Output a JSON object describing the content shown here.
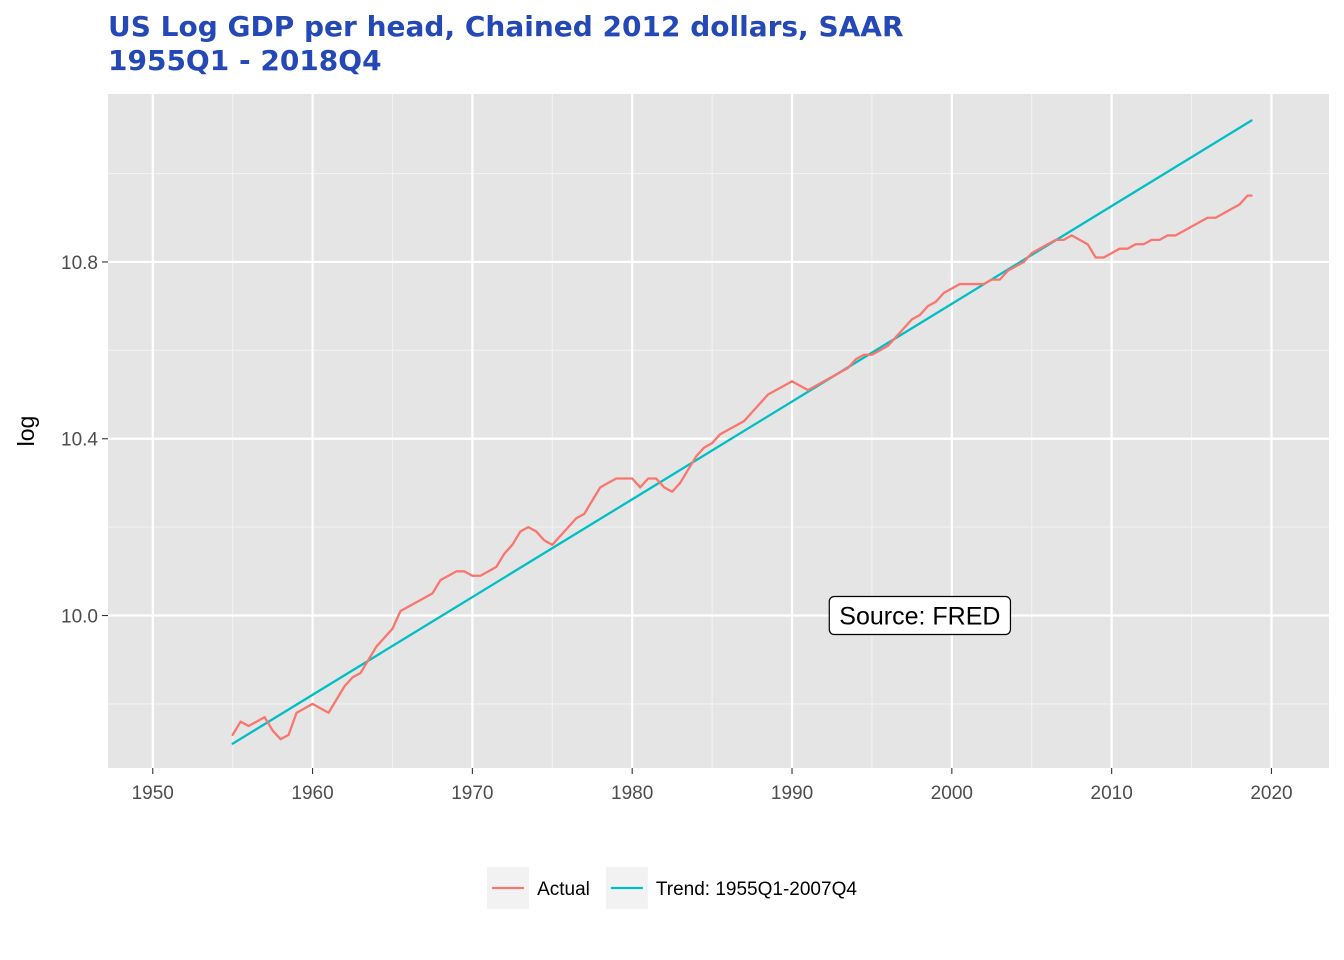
{
  "chart_data": {
    "type": "line",
    "title": "US Log GDP per head, Chained 2012 dollars, SAAR",
    "subtitle": "1955Q1 - 2018Q4",
    "xlabel": "",
    "ylabel": "log",
    "xlim": [
      1947.2,
      2023.6
    ],
    "ylim": [
      9.655,
      11.18
    ],
    "x_ticks": [
      1950,
      1960,
      1970,
      1980,
      1990,
      2000,
      2010,
      2020
    ],
    "y_ticks": [
      10.0,
      10.4,
      10.8
    ],
    "y_tick_labels": [
      "10.0",
      "10.4",
      "10.8"
    ],
    "grid": true,
    "legend_position": "bottom",
    "annotation": {
      "text": "Source: FRED",
      "x": 1998,
      "y": 10.0
    },
    "series": [
      {
        "name": "Actual",
        "color": "#F8766D",
        "points": [
          [
            1955.0,
            9.73
          ],
          [
            1955.5,
            9.76
          ],
          [
            1956.0,
            9.75
          ],
          [
            1956.5,
            9.76
          ],
          [
            1957.0,
            9.77
          ],
          [
            1957.5,
            9.74
          ],
          [
            1958.0,
            9.72
          ],
          [
            1958.5,
            9.73
          ],
          [
            1959.0,
            9.78
          ],
          [
            1959.5,
            9.79
          ],
          [
            1960.0,
            9.8
          ],
          [
            1960.5,
            9.79
          ],
          [
            1961.0,
            9.78
          ],
          [
            1961.5,
            9.81
          ],
          [
            1962.0,
            9.84
          ],
          [
            1962.5,
            9.86
          ],
          [
            1963.0,
            9.87
          ],
          [
            1963.5,
            9.9
          ],
          [
            1964.0,
            9.93
          ],
          [
            1964.5,
            9.95
          ],
          [
            1965.0,
            9.97
          ],
          [
            1965.5,
            10.01
          ],
          [
            1966.0,
            10.02
          ],
          [
            1966.5,
            10.03
          ],
          [
            1967.0,
            10.04
          ],
          [
            1967.5,
            10.05
          ],
          [
            1968.0,
            10.08
          ],
          [
            1968.5,
            10.09
          ],
          [
            1969.0,
            10.1
          ],
          [
            1969.5,
            10.1
          ],
          [
            1970.0,
            10.09
          ],
          [
            1970.5,
            10.09
          ],
          [
            1971.0,
            10.1
          ],
          [
            1971.5,
            10.11
          ],
          [
            1972.0,
            10.14
          ],
          [
            1972.5,
            10.16
          ],
          [
            1973.0,
            10.19
          ],
          [
            1973.5,
            10.2
          ],
          [
            1974.0,
            10.19
          ],
          [
            1974.5,
            10.17
          ],
          [
            1975.0,
            10.16
          ],
          [
            1975.5,
            10.18
          ],
          [
            1976.0,
            10.2
          ],
          [
            1976.5,
            10.22
          ],
          [
            1977.0,
            10.23
          ],
          [
            1977.5,
            10.26
          ],
          [
            1978.0,
            10.29
          ],
          [
            1978.5,
            10.3
          ],
          [
            1979.0,
            10.31
          ],
          [
            1979.5,
            10.31
          ],
          [
            1980.0,
            10.31
          ],
          [
            1980.5,
            10.29
          ],
          [
            1981.0,
            10.31
          ],
          [
            1981.5,
            10.31
          ],
          [
            1982.0,
            10.29
          ],
          [
            1982.5,
            10.28
          ],
          [
            1983.0,
            10.3
          ],
          [
            1983.5,
            10.33
          ],
          [
            1984.0,
            10.36
          ],
          [
            1984.5,
            10.38
          ],
          [
            1985.0,
            10.39
          ],
          [
            1985.5,
            10.41
          ],
          [
            1986.0,
            10.42
          ],
          [
            1986.5,
            10.43
          ],
          [
            1987.0,
            10.44
          ],
          [
            1987.5,
            10.46
          ],
          [
            1988.0,
            10.48
          ],
          [
            1988.5,
            10.5
          ],
          [
            1989.0,
            10.51
          ],
          [
            1989.5,
            10.52
          ],
          [
            1990.0,
            10.53
          ],
          [
            1990.5,
            10.52
          ],
          [
            1991.0,
            10.51
          ],
          [
            1991.5,
            10.52
          ],
          [
            1992.0,
            10.53
          ],
          [
            1992.5,
            10.54
          ],
          [
            1993.0,
            10.55
          ],
          [
            1993.5,
            10.56
          ],
          [
            1994.0,
            10.58
          ],
          [
            1994.5,
            10.59
          ],
          [
            1995.0,
            10.59
          ],
          [
            1995.5,
            10.6
          ],
          [
            1996.0,
            10.61
          ],
          [
            1996.5,
            10.63
          ],
          [
            1997.0,
            10.65
          ],
          [
            1997.5,
            10.67
          ],
          [
            1998.0,
            10.68
          ],
          [
            1998.5,
            10.7
          ],
          [
            1999.0,
            10.71
          ],
          [
            1999.5,
            10.73
          ],
          [
            2000.0,
            10.74
          ],
          [
            2000.5,
            10.75
          ],
          [
            2001.0,
            10.75
          ],
          [
            2001.5,
            10.75
          ],
          [
            2002.0,
            10.75
          ],
          [
            2002.5,
            10.76
          ],
          [
            2003.0,
            10.76
          ],
          [
            2003.5,
            10.78
          ],
          [
            2004.0,
            10.79
          ],
          [
            2004.5,
            10.8
          ],
          [
            2005.0,
            10.82
          ],
          [
            2005.5,
            10.83
          ],
          [
            2006.0,
            10.84
          ],
          [
            2006.5,
            10.85
          ],
          [
            2007.0,
            10.85
          ],
          [
            2007.5,
            10.86
          ],
          [
            2008.0,
            10.85
          ],
          [
            2008.5,
            10.84
          ],
          [
            2009.0,
            10.81
          ],
          [
            2009.5,
            10.81
          ],
          [
            2010.0,
            10.82
          ],
          [
            2010.5,
            10.83
          ],
          [
            2011.0,
            10.83
          ],
          [
            2011.5,
            10.84
          ],
          [
            2012.0,
            10.84
          ],
          [
            2012.5,
            10.85
          ],
          [
            2013.0,
            10.85
          ],
          [
            2013.5,
            10.86
          ],
          [
            2014.0,
            10.86
          ],
          [
            2014.5,
            10.87
          ],
          [
            2015.0,
            10.88
          ],
          [
            2015.5,
            10.89
          ],
          [
            2016.0,
            10.9
          ],
          [
            2016.5,
            10.9
          ],
          [
            2017.0,
            10.91
          ],
          [
            2017.5,
            10.92
          ],
          [
            2018.0,
            10.93
          ],
          [
            2018.5,
            10.95
          ],
          [
            2018.75,
            10.95
          ]
        ]
      },
      {
        "name": "Trend: 1955Q1-2007Q4",
        "color": "#00BFC4",
        "points": [
          [
            1955.0,
            9.71
          ],
          [
            2018.75,
            11.12
          ]
        ]
      }
    ]
  }
}
